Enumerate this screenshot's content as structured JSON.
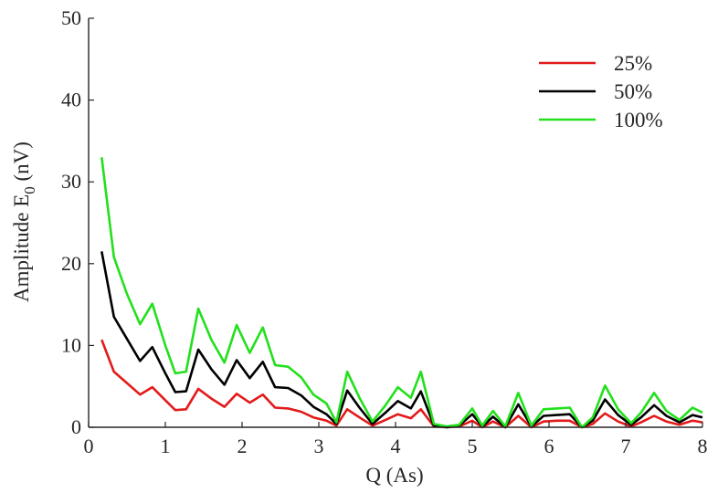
{
  "chart_data": {
    "type": "line",
    "title": "",
    "xlabel": "Q (As)",
    "ylabel_main": "Amplitude E",
    "ylabel_sub": "0",
    "ylabel_unit": " (nV)",
    "xlim": [
      0,
      8
    ],
    "ylim": [
      0,
      50
    ],
    "xticks": [
      "0",
      "1",
      "2",
      "3",
      "4",
      "5",
      "6",
      "7",
      "8"
    ],
    "yticks": [
      "0",
      "10",
      "20",
      "30",
      "40",
      "50"
    ],
    "grid": false,
    "legend_position": "top-right",
    "x": [
      0.17,
      0.33,
      0.5,
      0.67,
      0.83,
      1.0,
      1.13,
      1.27,
      1.43,
      1.6,
      1.77,
      1.93,
      2.1,
      2.27,
      2.43,
      2.6,
      2.77,
      2.93,
      3.1,
      3.23,
      3.37,
      3.53,
      3.7,
      3.87,
      4.03,
      4.2,
      4.33,
      4.5,
      4.67,
      4.83,
      5.0,
      5.13,
      5.27,
      5.43,
      5.6,
      5.77,
      5.93,
      6.1,
      6.27,
      6.43,
      6.57,
      6.73,
      6.9,
      7.07,
      7.2,
      7.37,
      7.53,
      7.7,
      7.87,
      8.0
    ],
    "series": [
      {
        "name": "25%",
        "color": "#e21a1a",
        "values": [
          10.7,
          6.8,
          5.4,
          4.0,
          4.9,
          3.3,
          2.1,
          2.2,
          4.7,
          3.5,
          2.5,
          4.1,
          3.0,
          4.0,
          2.4,
          2.3,
          1.9,
          1.2,
          0.8,
          0.2,
          2.2,
          1.2,
          0.2,
          0.9,
          1.6,
          1.1,
          2.2,
          0.1,
          0.0,
          0.1,
          0.8,
          0.0,
          0.7,
          0.0,
          1.4,
          0.0,
          0.7,
          0.8,
          0.8,
          0.0,
          0.4,
          1.7,
          0.7,
          0.1,
          0.6,
          1.4,
          0.7,
          0.3,
          0.8,
          0.6
        ]
      },
      {
        "name": "50%",
        "color": "#000000",
        "values": [
          21.5,
          13.5,
          10.8,
          8.1,
          9.8,
          6.6,
          4.3,
          4.4,
          9.5,
          7.1,
          5.2,
          8.2,
          6.0,
          8.0,
          4.9,
          4.8,
          3.9,
          2.5,
          1.6,
          0.4,
          4.5,
          2.4,
          0.4,
          1.8,
          3.2,
          2.3,
          4.4,
          0.2,
          0.0,
          0.2,
          1.6,
          0.1,
          1.3,
          0.0,
          2.8,
          0.1,
          1.4,
          1.5,
          1.6,
          0.0,
          0.8,
          3.4,
          1.5,
          0.3,
          1.2,
          2.7,
          1.4,
          0.6,
          1.5,
          1.2
        ]
      },
      {
        "name": "100%",
        "color": "#22e01c",
        "values": [
          33.0,
          20.8,
          16.3,
          12.6,
          15.1,
          10.0,
          6.6,
          6.8,
          14.5,
          10.7,
          7.9,
          12.5,
          9.1,
          12.2,
          7.6,
          7.4,
          6.1,
          4.0,
          2.9,
          0.6,
          6.8,
          3.6,
          0.7,
          2.7,
          4.9,
          3.6,
          6.8,
          0.4,
          0.1,
          0.3,
          2.3,
          0.2,
          2.0,
          0.1,
          4.2,
          0.2,
          2.2,
          2.3,
          2.4,
          0.0,
          1.2,
          5.1,
          2.2,
          0.5,
          1.8,
          4.2,
          2.0,
          0.9,
          2.4,
          1.8
        ]
      }
    ]
  }
}
